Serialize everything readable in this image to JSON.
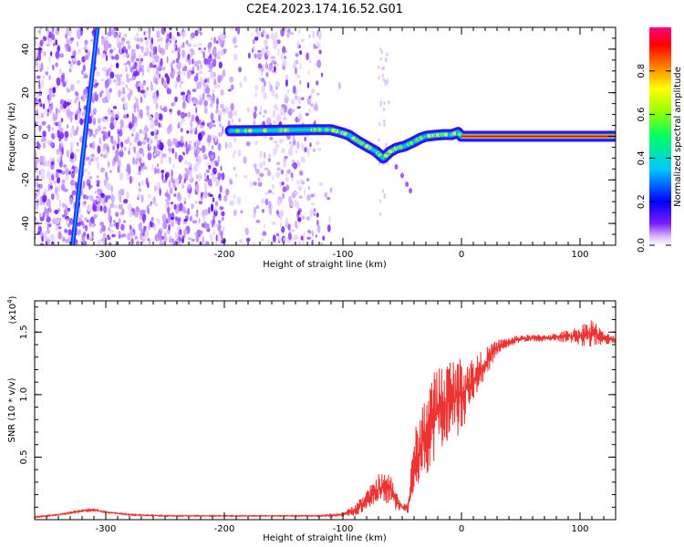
{
  "title": "C2E4.2023.174.16.52.G01",
  "colors": {
    "line": "#ee3333",
    "dots": "#8a3cf0",
    "axis": "#000000"
  },
  "chart_data": [
    {
      "type": "heatmap",
      "xlabel": "Height of straight line (km)",
      "ylabel": "Frequency (Hz)",
      "xlim": [
        -360,
        130
      ],
      "ylim": [
        -50,
        50
      ],
      "xticks": [
        -300,
        -200,
        -100,
        0,
        100
      ],
      "yticks": [
        -40,
        -20,
        0,
        20,
        40
      ],
      "colorbar": {
        "label": "Normalized spectral amplitude",
        "ticks": [
          0.0,
          0.2,
          0.4,
          0.6,
          0.8
        ],
        "range": [
          0,
          1
        ]
      },
      "signal_trace": {
        "x": [
          -195,
          -175,
          -150,
          -125,
          -110,
          -100,
          -95,
          -88,
          -80,
          -72,
          -66,
          -60,
          -55,
          -48,
          -42,
          -35,
          -30,
          -22,
          -15,
          -8,
          -3,
          0,
          20,
          60,
          100,
          130
        ],
        "y": [
          2.5,
          2.6,
          2.8,
          3.0,
          3.0,
          1.5,
          0.5,
          -2.0,
          -4.5,
          -7.0,
          -10.0,
          -7.0,
          -5.5,
          -4.5,
          -3.0,
          -1.0,
          0.0,
          0.5,
          0.8,
          0.8,
          1.8,
          0.0,
          0.0,
          0.0,
          0.0,
          0.0
        ]
      },
      "diagonal_streak": {
        "x": [
          -328,
          -307
        ],
        "y": [
          -50,
          50
        ]
      }
    },
    {
      "type": "line",
      "xlabel": "Height of straight line (km)",
      "ylabel": "SNR (10 * v/v)",
      "exponent_label": "(x10",
      "exponent_power": "4",
      "exponent_close": ")",
      "xlim": [
        -360,
        130
      ],
      "ylim": [
        0,
        1.75
      ],
      "xticks": [
        -300,
        -200,
        -100,
        0,
        100
      ],
      "yticks": [
        0.5,
        1.0,
        1.5
      ],
      "series": [
        {
          "x": [
            -360,
            -340,
            -320,
            -310,
            -300,
            -280,
            -250,
            -200,
            -150,
            -120,
            -100,
            -90,
            -80,
            -70,
            -60,
            -55,
            -50,
            -45,
            -40,
            -35,
            -30,
            -20,
            -10,
            0,
            10,
            20,
            30,
            40,
            50,
            60,
            80,
            100,
            110,
            120,
            130
          ],
          "y": [
            0.02,
            0.04,
            0.07,
            0.08,
            0.06,
            0.04,
            0.03,
            0.03,
            0.03,
            0.03,
            0.04,
            0.08,
            0.15,
            0.25,
            0.25,
            0.15,
            0.1,
            0.1,
            0.45,
            0.55,
            0.7,
            0.85,
            0.95,
            1.0,
            1.1,
            1.25,
            1.38,
            1.42,
            1.45,
            1.45,
            1.46,
            1.47,
            1.5,
            1.45,
            1.44
          ],
          "noise": [
            0.005,
            0.005,
            0.008,
            0.008,
            0.006,
            0.005,
            0.005,
            0.004,
            0.004,
            0.005,
            0.01,
            0.05,
            0.08,
            0.12,
            0.12,
            0.08,
            0.03,
            0.05,
            0.25,
            0.3,
            0.35,
            0.4,
            0.35,
            0.3,
            0.2,
            0.12,
            0.06,
            0.04,
            0.03,
            0.03,
            0.03,
            0.08,
            0.12,
            0.05,
            0.03
          ]
        }
      ]
    }
  ]
}
